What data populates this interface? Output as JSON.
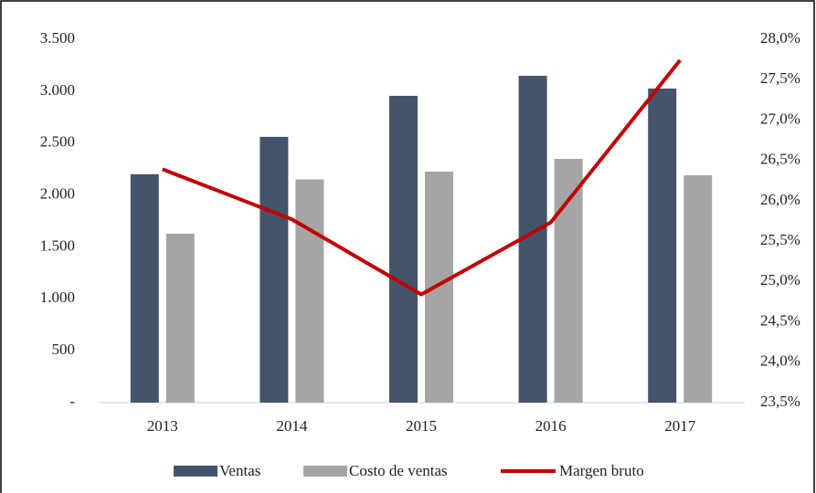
{
  "chart_data": {
    "type": "bar",
    "categories": [
      "2013",
      "2014",
      "2015",
      "2016",
      "2017"
    ],
    "series": [
      {
        "name": "Ventas",
        "color": "#44546a",
        "values": [
          2200,
          2560,
          2955,
          3148,
          3025
        ]
      },
      {
        "name": "Costo de ventas",
        "color": "#a5a5a5",
        "values": [
          1627,
          2150,
          2225,
          2348,
          2190
        ]
      },
      {
        "name": "Margen bruto",
        "type": "line",
        "axis": "y2",
        "color": "#c00000",
        "values": [
          26.39,
          25.77,
          24.84,
          25.73,
          27.74
        ]
      }
    ],
    "ylim": [
      0,
      3500
    ],
    "yticks": [
      {
        "value": 0,
        "label": "-"
      },
      {
        "value": 500,
        "label": "500"
      },
      {
        "value": 1000,
        "label": "1.000"
      },
      {
        "value": 1500,
        "label": "1.500"
      },
      {
        "value": 2000,
        "label": "2.000"
      },
      {
        "value": 2500,
        "label": "2.500"
      },
      {
        "value": 3000,
        "label": "3.000"
      },
      {
        "value": 3500,
        "label": "3.500"
      }
    ],
    "y2lim": [
      23.5,
      28
    ],
    "y2ticks": [
      {
        "value": 23.5,
        "label": "23,5%"
      },
      {
        "value": 24,
        "label": "24,0%"
      },
      {
        "value": 24.5,
        "label": "24,5%"
      },
      {
        "value": 25,
        "label": "25,0%"
      },
      {
        "value": 25.5,
        "label": "25,5%"
      },
      {
        "value": 26,
        "label": "26,0%"
      },
      {
        "value": 26.5,
        "label": "26,5%"
      },
      {
        "value": 27,
        "label": "27,0%"
      },
      {
        "value": 27.5,
        "label": "27,5%"
      },
      {
        "value": 28,
        "label": "28,0%"
      }
    ],
    "grid": false,
    "legend": "bottom"
  }
}
